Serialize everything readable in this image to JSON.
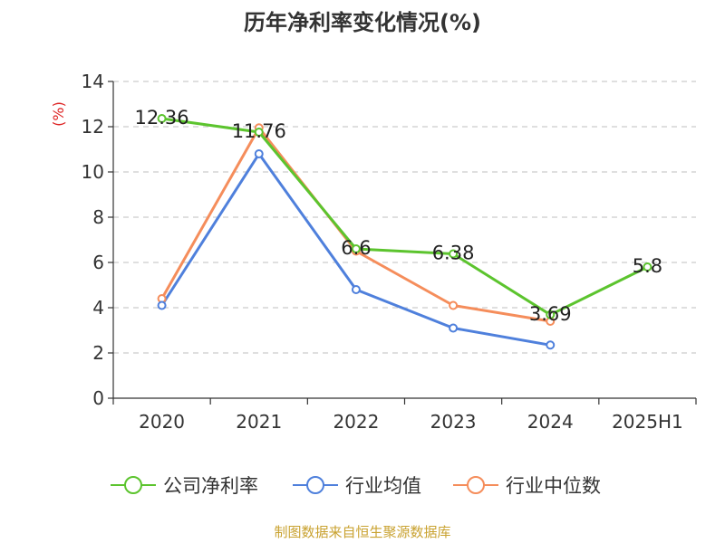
{
  "chart_data": {
    "type": "line",
    "title": "历年净利率变化情况(%)",
    "ylabel": "(%)",
    "categories": [
      "2020",
      "2021",
      "2022",
      "2023",
      "2024",
      "2025H1"
    ],
    "ylim": [
      0,
      14
    ],
    "yticks": [
      "0",
      "2",
      "4",
      "6",
      "8",
      "10",
      "12",
      "14"
    ],
    "grid": true,
    "legend_position": "bottom",
    "series": [
      {
        "name": "公司净利率",
        "color": "#5cc42e",
        "values": [
          12.36,
          11.76,
          6.6,
          6.38,
          3.69,
          5.8
        ],
        "labels": [
          "12.36",
          "11.76",
          "6.6",
          "6.38",
          "3.69",
          "5.8"
        ]
      },
      {
        "name": "行业均值",
        "color": "#4f80dc",
        "values": [
          4.1,
          10.8,
          4.8,
          3.1,
          2.35,
          null
        ]
      },
      {
        "name": "行业中位数",
        "color": "#f58d5b",
        "values": [
          4.4,
          11.95,
          6.5,
          4.1,
          3.4,
          null
        ]
      }
    ]
  },
  "source": {
    "text": "制图数据来自恒生聚源数据库",
    "color": "#c9a230"
  },
  "colors": {
    "unit_label": "#dd2222",
    "axis": "#333333",
    "grid": "#cccccc"
  }
}
